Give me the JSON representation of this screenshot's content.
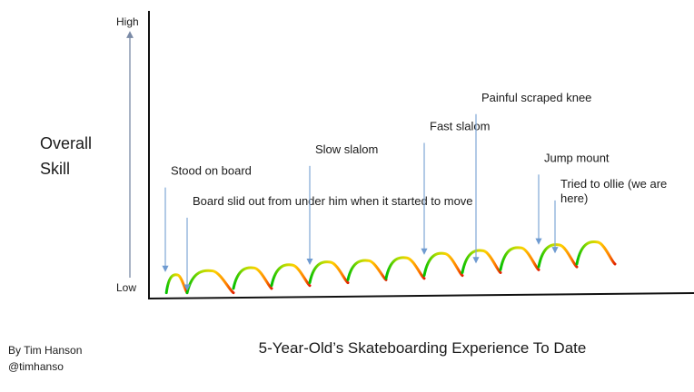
{
  "chart_data": {
    "type": "line",
    "title": "",
    "xlabel": "5-Year-Old’s Skateboarding Experience To Date",
    "ylabel": [
      "Overall",
      "Skill"
    ],
    "y_ticks": {
      "high": "High",
      "low": "Low"
    },
    "grid": false,
    "legend": "none",
    "color_gradient": [
      "#00c000",
      "#aadd00",
      "#ffd000",
      "#ff8000",
      "#e02000"
    ],
    "arrow_color": "#7fa7d6",
    "axis_color": "#111111",
    "x_range": [
      0,
      100
    ],
    "y_range": [
      0,
      100
    ],
    "cycles": [
      {
        "start": 3.2,
        "end": 7.0,
        "low": 2.0,
        "peak": 8.5
      },
      {
        "start": 7.0,
        "end": 15.5,
        "low": 2.0,
        "peak": 10.0
      },
      {
        "start": 15.5,
        "end": 22.5,
        "low": 3.5,
        "peak": 11.0
      },
      {
        "start": 22.5,
        "end": 29.5,
        "low": 4.5,
        "peak": 12.0
      },
      {
        "start": 29.5,
        "end": 36.5,
        "low": 5.5,
        "peak": 13.0
      },
      {
        "start": 36.5,
        "end": 43.5,
        "low": 6.5,
        "peak": 13.5
      },
      {
        "start": 43.5,
        "end": 50.5,
        "low": 7.0,
        "peak": 14.5
      },
      {
        "start": 50.5,
        "end": 57.5,
        "low": 8.0,
        "peak": 16.0
      },
      {
        "start": 57.5,
        "end": 64.5,
        "low": 9.0,
        "peak": 17.0
      },
      {
        "start": 64.5,
        "end": 71.5,
        "low": 10.0,
        "peak": 18.0
      },
      {
        "start": 71.5,
        "end": 78.5,
        "low": 11.0,
        "peak": 19.0
      },
      {
        "start": 78.5,
        "end": 85.5,
        "low": 12.0,
        "peak": 20.0
      }
    ],
    "annotations": [
      {
        "lines": [
          "Stood on board"
        ],
        "x": 3.0,
        "y": 9.0,
        "text_x": 4.0,
        "text_y": 40.5
      },
      {
        "lines": [
          "Board slid out from under him when it started to move"
        ],
        "x": 7.0,
        "y": 2.5,
        "text_x": 8.0,
        "text_y": 30.0
      },
      {
        "lines": [
          "Slow slalom"
        ],
        "x": 29.5,
        "y": 11.5,
        "text_x": 30.5,
        "text_y": 48.0
      },
      {
        "lines": [
          "Fast slalom"
        ],
        "x": 50.5,
        "y": 15.0,
        "text_x": 51.5,
        "text_y": 56.0
      },
      {
        "lines": [
          "Painful scraped knee"
        ],
        "x": 60.0,
        "y": 12.0,
        "text_x": 61.0,
        "text_y": 66.0
      },
      {
        "lines": [
          "Jump mount"
        ],
        "x": 71.5,
        "y": 18.5,
        "text_x": 72.5,
        "text_y": 45.0
      },
      {
        "lines": [
          "Tried to ollie (we are",
          "here)"
        ],
        "x": 74.5,
        "y": 15.5,
        "text_x": 75.5,
        "text_y": 36.0
      }
    ]
  },
  "credit": {
    "line1": "By Tim Hanson",
    "line2": "@timhanso"
  }
}
